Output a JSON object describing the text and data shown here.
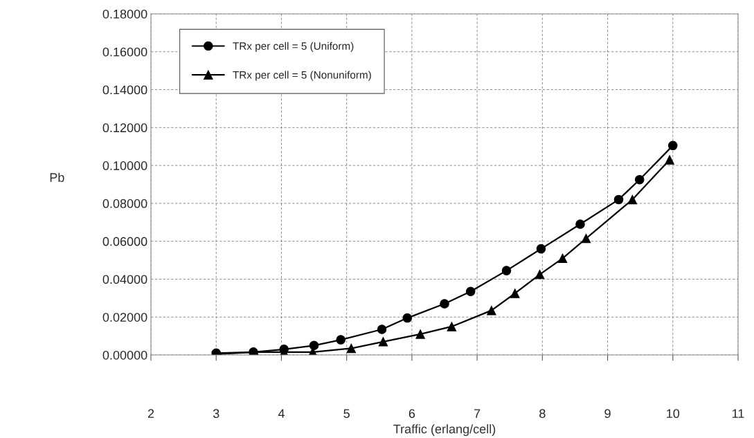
{
  "chart_data": {
    "type": "line",
    "xlabel": "Traffic (erlang/cell)",
    "ylabel": "Pb",
    "xlim": [
      2,
      11
    ],
    "xticks": [
      2,
      3,
      4,
      5,
      6,
      7,
      8,
      9,
      10,
      11
    ],
    "ylim": [
      0,
      0.18
    ],
    "yticks": [
      {
        "value": 0,
        "label": "0.00000"
      },
      {
        "value": 0.02,
        "label": "0.02000"
      },
      {
        "value": 0.04,
        "label": "0.04000"
      },
      {
        "value": 0.06,
        "label": "0.06000"
      },
      {
        "value": 0.08,
        "label": "0.08000"
      },
      {
        "value": 0.1,
        "label": "0.10000"
      },
      {
        "value": 0.12,
        "label": "0.12000"
      },
      {
        "value": 0.14,
        "label": "0.14000"
      },
      {
        "value": 0.16,
        "label": "0.16000"
      },
      {
        "value": 0.18,
        "label": "0.18000"
      }
    ],
    "grid": true,
    "legend": "top left",
    "series": [
      {
        "name": "TRx per cell = 5 (Uniform)",
        "color": "#000000",
        "marker": "circle",
        "x": [
          3,
          3.57,
          4.04,
          4.5,
          4.91,
          5.54,
          5.93,
          6.5,
          6.9,
          7.45,
          7.98,
          8.58,
          9.17,
          9.49,
          10
        ],
        "values": [
          0.001,
          0.0015,
          0.003,
          0.005,
          0.008,
          0.0135,
          0.0195,
          0.027,
          0.0335,
          0.0445,
          0.056,
          0.069,
          0.082,
          0.0925,
          0.1105
        ]
      },
      {
        "name": "TRx per cell = 5 (Nonuniform)",
        "color": "#000000",
        "marker": "triangle",
        "x": [
          3.04,
          3.59,
          4.04,
          4.48,
          5.07,
          5.56,
          6.13,
          6.61,
          7.22,
          7.58,
          7.96,
          8.31,
          8.67,
          9.38,
          9.95
        ],
        "values": [
          0.0005,
          0.0015,
          0.0015,
          0.0015,
          0.0035,
          0.007,
          0.011,
          0.015,
          0.0235,
          0.0325,
          0.0425,
          0.051,
          0.0615,
          0.082,
          0.103
        ]
      }
    ]
  }
}
